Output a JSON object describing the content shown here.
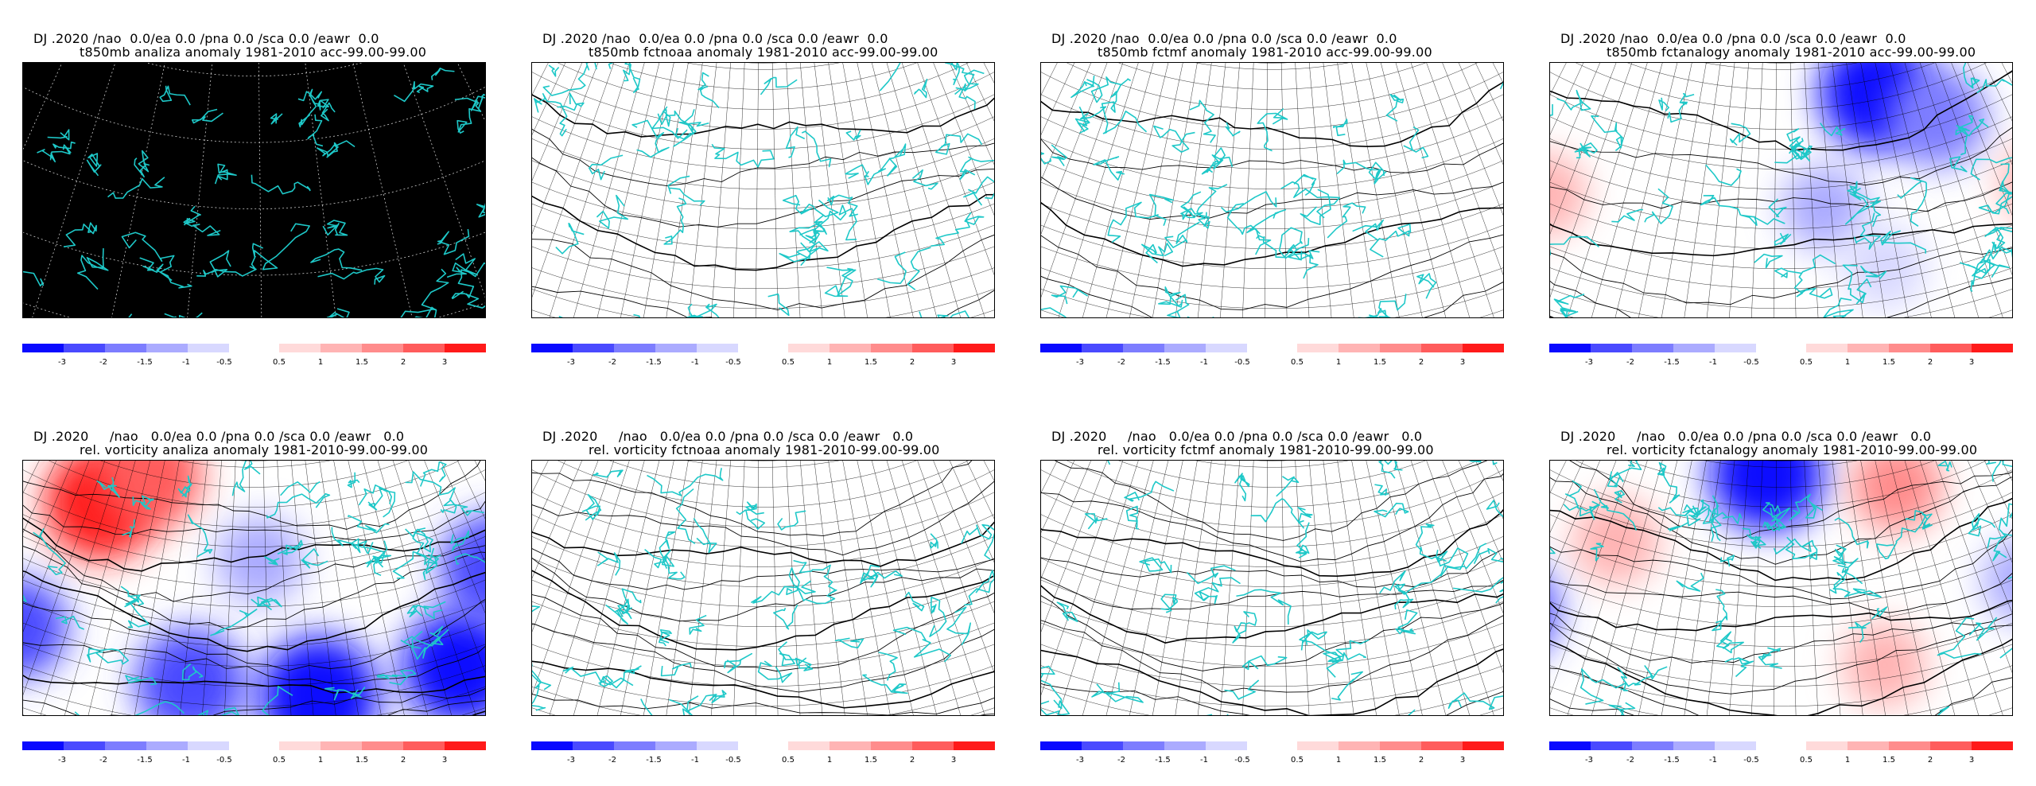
{
  "panels": [
    {
      "line1": "DJ .2020 /nao  0.0/ea 0.0 /pna 0.0 /sca 0.0 /eawr  0.0",
      "line2": "t850mb analiza anomaly 1981-2010 acc-99.00-99.00",
      "style": "black",
      "field": []
    },
    {
      "line1": "DJ .2020 /nao  0.0/ea 0.0 /pna 0.0 /sca 0.0 /eawr  0.0",
      "line2": "t850mb fctnoaa anomaly 1981-2010 acc-99.00-99.00",
      "style": "grid",
      "field": []
    },
    {
      "line1": "DJ .2020 /nao  0.0/ea 0.0 /pna 0.0 /sca 0.0 /eawr  0.0",
      "line2": "t850mb fctmf anomaly 1981-2010 acc-99.00-99.00",
      "style": "grid",
      "field": []
    },
    {
      "line1": "DJ .2020 /nao  0.0/ea 0.0 /pna 0.0 /sca 0.0 /eawr  0.0",
      "line2": "t850mb fctanalogy anomaly 1981-2010 acc-99.00-99.00",
      "style": "grid",
      "field": [
        {
          "lon": 34,
          "lat": 66,
          "v": -2.6
        },
        {
          "lon": 44,
          "lat": 60,
          "v": -1.6
        },
        {
          "lon": 22,
          "lat": 50,
          "v": -0.8
        },
        {
          "lon": -22,
          "lat": 45,
          "v": 0.8
        },
        {
          "lon": 56,
          "lat": 45,
          "v": 0.8
        },
        {
          "lon": 30,
          "lat": 40,
          "v": -0.7
        }
      ]
    },
    {
      "line1": "DJ .2020     /nao   0.0/ea 0.0 /pna 0.0 /sca 0.0 /eawr   0.0",
      "line2": "rel. vorticity analiza anomaly 1981-2010-99.00-99.00",
      "style": "grid",
      "field": [
        {
          "lon": -14,
          "lat": 62,
          "v": 2.6
        },
        {
          "lon": -6,
          "lat": 68,
          "v": 1.8
        },
        {
          "lon": 16,
          "lat": 57,
          "v": -1.0
        },
        {
          "lon": -20,
          "lat": 40,
          "v": -1.8
        },
        {
          "lon": 6,
          "lat": 38,
          "v": -2.4
        },
        {
          "lon": 24,
          "lat": 36,
          "v": -3.0
        },
        {
          "lon": 44,
          "lat": 36,
          "v": -2.7
        },
        {
          "lon": 54,
          "lat": 48,
          "v": -2.4
        }
      ]
    },
    {
      "line1": "DJ .2020     /nao   0.0/ea 0.0 /pna 0.0 /sca 0.0 /eawr   0.0",
      "line2": "rel. vorticity fctnoaa anomaly 1981-2010-99.00-99.00",
      "style": "grid",
      "field": []
    },
    {
      "line1": "DJ .2020     /nao   0.0/ea 0.0 /pna 0.0 /sca 0.0 /eawr   0.0",
      "line2": "rel. vorticity fctmf anomaly 1981-2010-99.00-99.00",
      "style": "grid",
      "field": []
    },
    {
      "line1": "DJ .2020     /nao   0.0/ea 0.0 /pna 0.0 /sca 0.0 /eawr   0.0",
      "line2": "rel. vorticity fctanalogy anomaly 1981-2010-99.00-99.00",
      "style": "grid",
      "field": [
        {
          "lon": 12,
          "lat": 70,
          "v": -2.6
        },
        {
          "lon": 38,
          "lat": 66,
          "v": 1.2
        },
        {
          "lon": -14,
          "lat": 56,
          "v": 1.0
        },
        {
          "lon": -26,
          "lat": 40,
          "v": -2.0
        },
        {
          "lon": 30,
          "lat": 40,
          "v": 0.8
        },
        {
          "lon": 54,
          "lat": 46,
          "v": -1.0
        }
      ]
    }
  ],
  "colorbar": {
    "blue_labels": [
      "-3",
      "-2",
      "-1.5",
      "-1",
      "-0.5"
    ],
    "red_labels": [
      "0.5",
      "1",
      "1.5",
      "2",
      "3"
    ],
    "blue_colors": [
      "#0a0aff",
      "#4a4aff",
      "#7d7dff",
      "#ababff",
      "#d8d8ff"
    ],
    "red_colors": [
      "#ffdada",
      "#ffb4b4",
      "#ff8c8c",
      "#ff5c5c",
      "#ff1a1a"
    ]
  },
  "colors": {
    "coast": "#1ec8c8",
    "grid": "#000000",
    "black_map": "#000000",
    "dotted_grid": "#ffffff"
  }
}
